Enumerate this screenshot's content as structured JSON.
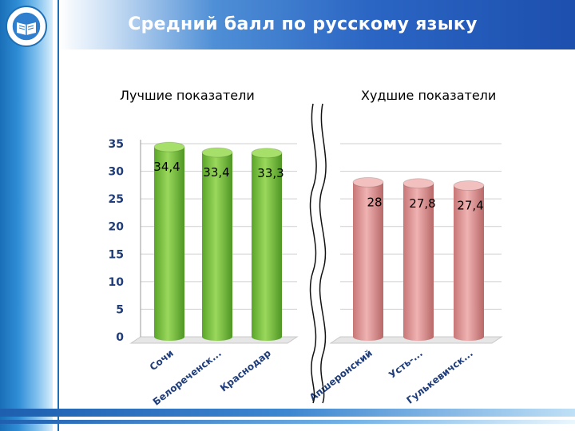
{
  "header": {
    "title": "Средний балл по русскому языку"
  },
  "logo": {
    "icon": "open-book-emblem-icon"
  },
  "sections": {
    "left": "Лучшие показатели",
    "right": "Худшие показатели"
  },
  "colors": {
    "best": "#7cc242",
    "worst": "#d98c8c"
  },
  "chart_data": {
    "type": "bar",
    "title": "Средний балл по русскому языку",
    "ylim": [
      0,
      35
    ],
    "yticks": [
      0,
      5,
      10,
      15,
      20,
      25,
      30,
      35
    ],
    "grid": true,
    "groups": [
      {
        "name": "Лучшие показатели",
        "categories": [
          "Сочи",
          "Белореченск...",
          "Краснодар"
        ],
        "values": [
          34.4,
          33.4,
          33.3
        ],
        "labels": [
          "34,4",
          "33,4",
          "33,3"
        ]
      },
      {
        "name": "Худшие показатели",
        "categories": [
          "Апшеронский",
          "Усть-...",
          "Гулькевичск..."
        ],
        "values": [
          28,
          27.8,
          27.4
        ],
        "labels": [
          "28",
          "27,8",
          "27,4"
        ]
      }
    ]
  }
}
